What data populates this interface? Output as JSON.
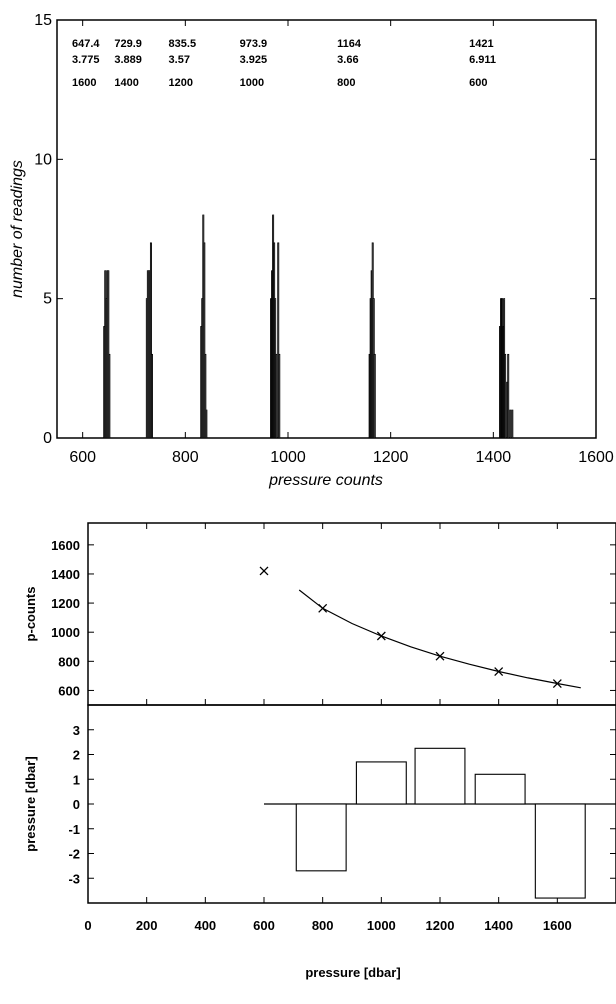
{
  "chart_data": [
    {
      "type": "bar",
      "id": "histogram",
      "xlabel": "pressure counts",
      "ylabel": "number of readings",
      "xlim": [
        550,
        1600
      ],
      "ylim": [
        0,
        15
      ],
      "xticks": [
        600,
        800,
        1000,
        1200,
        1400,
        1600
      ],
      "yticks": [
        0,
        5,
        10,
        15
      ],
      "grid": false,
      "bins": [
        {
          "x": 641,
          "count": 4
        },
        {
          "x": 643,
          "count": 6
        },
        {
          "x": 645,
          "count": 5
        },
        {
          "x": 647,
          "count": 6
        },
        {
          "x": 649,
          "count": 6
        },
        {
          "x": 651,
          "count": 3
        },
        {
          "x": 724,
          "count": 5
        },
        {
          "x": 726,
          "count": 6
        },
        {
          "x": 728,
          "count": 6
        },
        {
          "x": 730,
          "count": 6
        },
        {
          "x": 732,
          "count": 7
        },
        {
          "x": 734,
          "count": 3
        },
        {
          "x": 830,
          "count": 4
        },
        {
          "x": 832,
          "count": 5
        },
        {
          "x": 834,
          "count": 8
        },
        {
          "x": 836,
          "count": 7
        },
        {
          "x": 838,
          "count": 3
        },
        {
          "x": 840,
          "count": 1
        },
        {
          "x": 966,
          "count": 5
        },
        {
          "x": 968,
          "count": 6
        },
        {
          "x": 970,
          "count": 8
        },
        {
          "x": 972,
          "count": 7
        },
        {
          "x": 974,
          "count": 5
        },
        {
          "x": 976,
          "count": 3
        },
        {
          "x": 980,
          "count": 7
        },
        {
          "x": 982,
          "count": 3
        },
        {
          "x": 1158,
          "count": 3
        },
        {
          "x": 1160,
          "count": 5
        },
        {
          "x": 1162,
          "count": 6
        },
        {
          "x": 1164,
          "count": 7
        },
        {
          "x": 1166,
          "count": 5
        },
        {
          "x": 1168,
          "count": 3
        },
        {
          "x": 1412,
          "count": 4
        },
        {
          "x": 1414,
          "count": 5
        },
        {
          "x": 1416,
          "count": 5
        },
        {
          "x": 1418,
          "count": 4
        },
        {
          "x": 1420,
          "count": 5
        },
        {
          "x": 1422,
          "count": 3
        },
        {
          "x": 1426,
          "count": 2
        },
        {
          "x": 1428,
          "count": 3
        },
        {
          "x": 1432,
          "count": 1
        },
        {
          "x": 1436,
          "count": 1
        }
      ],
      "annotations": [
        {
          "x": 647.4,
          "mean": "647.4",
          "std": "3.775",
          "pressure": "1600"
        },
        {
          "x": 729.9,
          "mean": "729.9",
          "std": "3.889",
          "pressure": "1400"
        },
        {
          "x": 835.5,
          "mean": "835.5",
          "std": "3.57",
          "pressure": "1200"
        },
        {
          "x": 973.9,
          "mean": "973.9",
          "std": "3.925",
          "pressure": "1000"
        },
        {
          "x": 1164,
          "mean": "1164",
          "std": "3.66",
          "pressure": "800"
        },
        {
          "x": 1421,
          "mean": "1421",
          "std": "6.911",
          "pressure": "600"
        }
      ]
    },
    {
      "type": "scatter",
      "id": "calibration",
      "xlabel": "",
      "ylabel": "p-counts",
      "xlim": [
        0,
        1800
      ],
      "ylim": [
        500,
        1750
      ],
      "xticks": [
        0,
        200,
        400,
        600,
        800,
        1000,
        1200,
        1400,
        1600
      ],
      "yticks": [
        600,
        800,
        1000,
        1200,
        1400,
        1600
      ],
      "grid": false,
      "points": [
        {
          "x": 600,
          "y": 1421
        },
        {
          "x": 800,
          "y": 1164
        },
        {
          "x": 1000,
          "y": 973.9
        },
        {
          "x": 1200,
          "y": 835.5
        },
        {
          "x": 1400,
          "y": 729.9
        },
        {
          "x": 1600,
          "y": 647.4
        }
      ],
      "fit_curve": [
        {
          "x": 720,
          "y": 1290
        },
        {
          "x": 800,
          "y": 1164
        },
        {
          "x": 900,
          "y": 1060
        },
        {
          "x": 1000,
          "y": 973.9
        },
        {
          "x": 1100,
          "y": 900
        },
        {
          "x": 1200,
          "y": 835.5
        },
        {
          "x": 1300,
          "y": 780
        },
        {
          "x": 1400,
          "y": 729.9
        },
        {
          "x": 1500,
          "y": 686
        },
        {
          "x": 1600,
          "y": 647.4
        },
        {
          "x": 1680,
          "y": 618
        }
      ]
    },
    {
      "type": "bar",
      "id": "residuals",
      "xlabel": "pressure [dbar]",
      "ylabel": "pressure [dbar]",
      "xlim": [
        0,
        1800
      ],
      "ylim": [
        -4,
        4
      ],
      "xticks": [
        0,
        200,
        400,
        600,
        800,
        1000,
        1200,
        1400,
        1600
      ],
      "yticks": [
        -3,
        -2,
        -1,
        0,
        1,
        2,
        3
      ],
      "grid": false,
      "baseline": {
        "x_start": 600,
        "x_end": 1800,
        "y": 0
      },
      "bars": [
        {
          "x_start": 710,
          "x_end": 880,
          "value": -2.7
        },
        {
          "x_start": 915,
          "x_end": 1085,
          "value": 1.7
        },
        {
          "x_start": 1115,
          "x_end": 1285,
          "value": 2.25
        },
        {
          "x_start": 1320,
          "x_end": 1490,
          "value": 1.2
        },
        {
          "x_start": 1525,
          "x_end": 1695,
          "value": -3.8
        }
      ]
    }
  ],
  "text": {
    "hist_xlabel": "pressure counts",
    "hist_ylabel": "number of readings",
    "cal_ylabel": "p-counts",
    "res_ylabel": "pressure [dbar]",
    "bottom_xlabel": "pressure [dbar]"
  }
}
